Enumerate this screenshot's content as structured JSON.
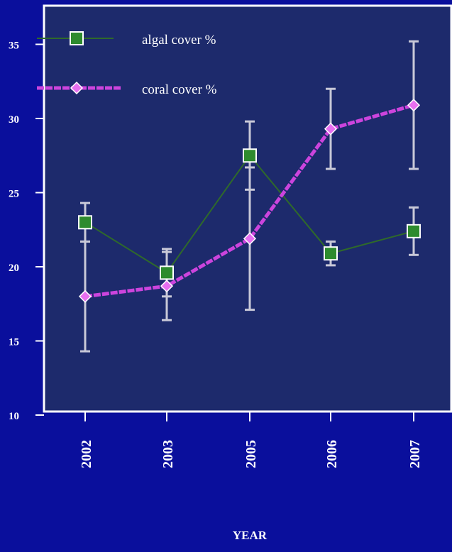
{
  "colors": {
    "background": "#0a0f9c",
    "plot_area": "#1d2a6c",
    "frame": "#ffffff",
    "algal": "#2e8b2e",
    "algal_line": "#2f6a2a",
    "coral": "#cc44dd",
    "coral_marker": "#e76ff0",
    "error_bar": "#c9c9d8",
    "text": "#ffffff"
  },
  "chart_data": {
    "type": "line",
    "categories": [
      "2002",
      "2003",
      "2005",
      "2006",
      "2007"
    ],
    "ytick_labels": [
      "10",
      "15",
      "20",
      "25",
      "30",
      "35"
    ],
    "ylim": [
      10,
      37
    ],
    "xlabel": "YEAR",
    "ylabel": "",
    "grid": false,
    "legend": "top-left",
    "series": [
      {
        "name": "algal cover %",
        "marker": "square",
        "values": [
          23,
          19.6,
          27.5,
          20.9,
          22.4
        ],
        "error": [
          1.3,
          1.6,
          2.3,
          0.8,
          1.6
        ]
      },
      {
        "name": "coral cover %",
        "marker": "diamond",
        "values": [
          18,
          18.7,
          21.9,
          29.3,
          30.9
        ],
        "error": [
          3.7,
          2.3,
          4.8,
          2.7,
          4.3
        ]
      }
    ]
  }
}
